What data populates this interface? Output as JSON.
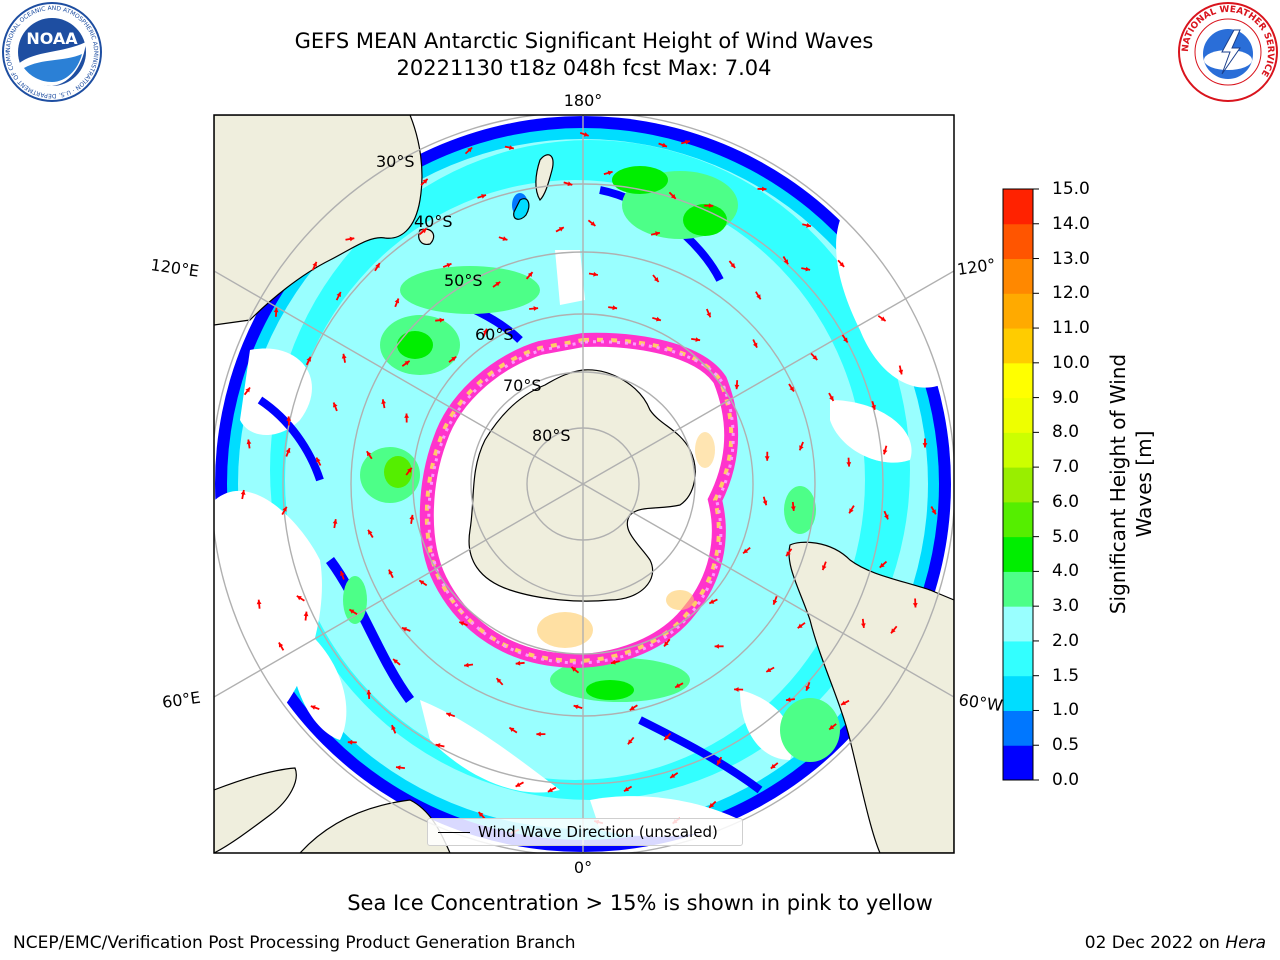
{
  "title": {
    "line1": "GEFS MEAN Antarctic Significant Height of Wind Waves",
    "line2": "20221130 t18z 048h fcst   Max: 7.04"
  },
  "logos": {
    "noaa": {
      "text": "NOAA",
      "ring_text": "NATIONAL OCEANIC AND ATMOSPHERIC ADMINISTRATION · U.S. DEPARTMENT OF COMMERCE",
      "icon": "noaa-logo"
    },
    "nws": {
      "ring_text": "NATIONAL WEATHER SERVICE",
      "icon": "nws-logo"
    }
  },
  "map": {
    "projection": "south-polar-stereographic",
    "meridian_labels": [
      "180°",
      "120°E",
      "120°",
      "60°E",
      "60°W",
      "0°"
    ],
    "parallel_labels": [
      "30°S",
      "40°S",
      "50°S",
      "60°S",
      "70°S",
      "80°S"
    ],
    "legend_label": "Wind Wave Direction (unscaled)",
    "land_color": "#efeedd",
    "ocean_color": "#ffffff",
    "arrow_color": "#ff0000",
    "ice_colors": [
      "#ff33cc",
      "#ff99ff",
      "#ffcc66",
      "#ffff66"
    ]
  },
  "colorbar": {
    "label": "Significant Height of Wind Waves [m]",
    "ticks": [
      "0.0",
      "0.5",
      "1.0",
      "1.5",
      "2.0",
      "3.0",
      "4.0",
      "5.0",
      "6.0",
      "7.0",
      "8.0",
      "9.0",
      "10.0",
      "11.0",
      "12.0",
      "13.0",
      "14.0",
      "15.0"
    ],
    "colors": [
      "#0000ff",
      "#0077ff",
      "#00ddff",
      "#33ffff",
      "#99ffff",
      "#4dff88",
      "#00ee00",
      "#55ee00",
      "#99ee00",
      "#ccff00",
      "#eeff00",
      "#ffff00",
      "#ffcc00",
      "#ffaa00",
      "#ff8800",
      "#ff5500",
      "#ff2200"
    ]
  },
  "footer": {
    "ice_note": "Sea Ice Concentration > 15% is shown in pink to yellow",
    "credit": "NCEP/EMC/Verification Post Processing Product Generation Branch",
    "date": "02 Dec 2022 on",
    "machine": "Hera"
  }
}
